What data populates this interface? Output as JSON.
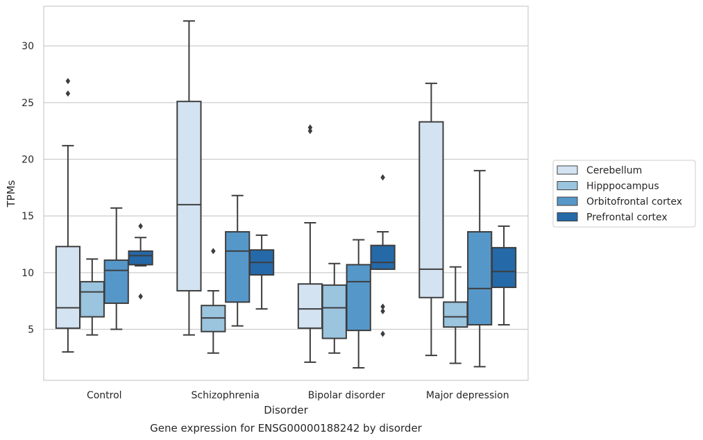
{
  "chart_data": {
    "type": "boxplot",
    "title": "Gene expression for ENSG00000188242 by disorder",
    "xlabel": "Disorder",
    "ylabel": "TPMs",
    "ylim": [
      0.5,
      33.5
    ],
    "yticks": [
      5,
      10,
      15,
      20,
      25,
      30
    ],
    "grid": true,
    "legend_position": "right",
    "categories": [
      "Control",
      "Schizophrenia",
      "Bipolar disorder",
      "Major depression"
    ],
    "series": [
      {
        "name": "Cerebellum",
        "color": "#d4e3f2",
        "boxes": [
          {
            "whislo": 3.0,
            "q1": 5.1,
            "med": 6.9,
            "q3": 12.3,
            "whishi": 21.2,
            "fliers": [
              25.8,
              26.9
            ]
          },
          {
            "whislo": 4.5,
            "q1": 8.4,
            "med": 16.0,
            "q3": 25.1,
            "whishi": 32.2,
            "fliers": []
          },
          {
            "whislo": 2.1,
            "q1": 5.1,
            "med": 6.8,
            "q3": 9.0,
            "whishi": 14.4,
            "fliers": [
              22.5,
              22.8
            ]
          },
          {
            "whislo": 2.7,
            "q1": 7.8,
            "med": 10.3,
            "q3": 23.3,
            "whishi": 26.7,
            "fliers": []
          }
        ]
      },
      {
        "name": "Hipppocampus",
        "color": "#9bc4de",
        "boxes": [
          {
            "whislo": 4.5,
            "q1": 6.1,
            "med": 8.3,
            "q3": 9.2,
            "whishi": 11.2,
            "fliers": []
          },
          {
            "whislo": 2.9,
            "q1": 4.8,
            "med": 6.0,
            "q3": 7.1,
            "whishi": 8.4,
            "fliers": [
              11.9
            ]
          },
          {
            "whislo": 2.9,
            "q1": 4.2,
            "med": 6.9,
            "q3": 8.9,
            "whishi": 10.8,
            "fliers": []
          },
          {
            "whislo": 2.0,
            "q1": 5.2,
            "med": 6.1,
            "q3": 7.4,
            "whishi": 10.5,
            "fliers": []
          }
        ]
      },
      {
        "name": "Orbitofrontal cortex",
        "color": "#5697c9",
        "boxes": [
          {
            "whislo": 5.0,
            "q1": 7.3,
            "med": 10.2,
            "q3": 11.1,
            "whishi": 15.7,
            "fliers": []
          },
          {
            "whislo": 5.3,
            "q1": 7.4,
            "med": 11.9,
            "q3": 13.6,
            "whishi": 16.8,
            "fliers": []
          },
          {
            "whislo": 1.6,
            "q1": 4.9,
            "med": 9.2,
            "q3": 10.7,
            "whishi": 12.9,
            "fliers": []
          },
          {
            "whislo": 1.7,
            "q1": 5.4,
            "med": 8.6,
            "q3": 13.6,
            "whishi": 19.0,
            "fliers": []
          }
        ]
      },
      {
        "name": "Prefrontal cortex",
        "color": "#2569a8",
        "boxes": [
          {
            "whislo": 10.6,
            "q1": 10.7,
            "med": 11.5,
            "q3": 11.9,
            "whishi": 13.1,
            "fliers": [
              14.1,
              7.9
            ]
          },
          {
            "whislo": 6.8,
            "q1": 9.8,
            "med": 10.9,
            "q3": 12.0,
            "whishi": 13.3,
            "fliers": []
          },
          {
            "whislo": 10.3,
            "q1": 10.3,
            "med": 10.9,
            "q3": 12.4,
            "whishi": 13.6,
            "fliers": [
              18.4,
              7.0,
              6.6,
              4.6
            ]
          },
          {
            "whislo": 5.4,
            "q1": 8.7,
            "med": 10.1,
            "q3": 12.2,
            "whishi": 14.1,
            "fliers": []
          }
        ]
      }
    ]
  }
}
